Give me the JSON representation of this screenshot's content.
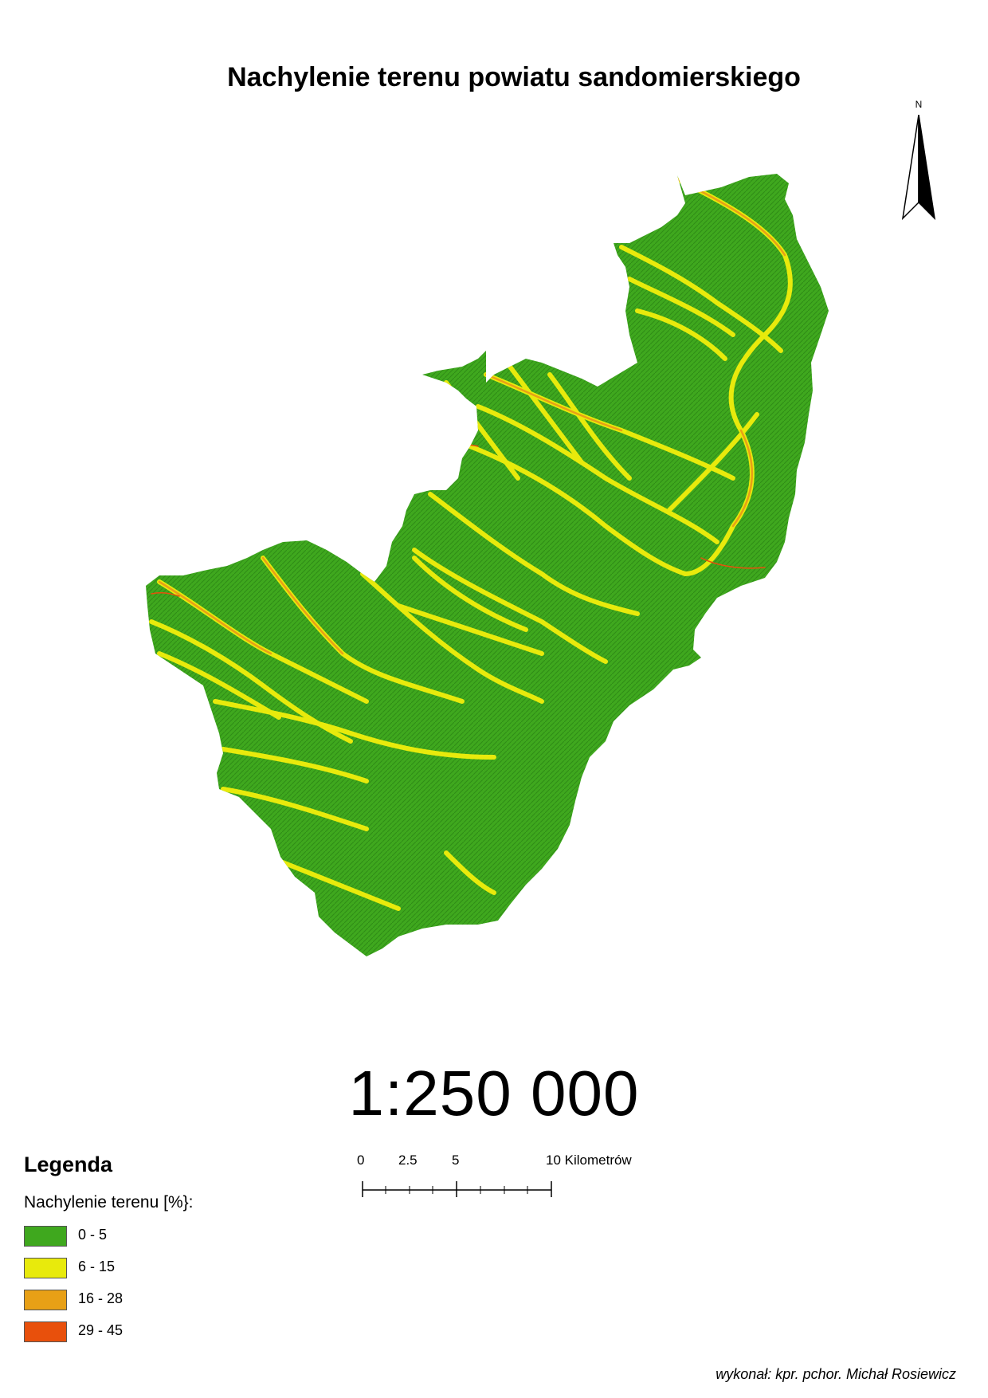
{
  "title": "Nachylenie terenu powiatu sandomierskiego",
  "north_arrow": {
    "label": "N"
  },
  "scale_ratio": "1:250 000",
  "scale_bar": {
    "labels": [
      "0",
      "2.5",
      "5",
      "10 Kilometrów"
    ]
  },
  "legend": {
    "title": "Legenda",
    "subtitle": "Nachylenie terenu [%}:",
    "items": [
      {
        "label": "0 - 5",
        "color": "#3fa81e"
      },
      {
        "label": "6 - 15",
        "color": "#e8ea0c"
      },
      {
        "label": "16 - 28",
        "color": "#e8a016"
      },
      {
        "label": "29 - 45",
        "color": "#e8500c"
      }
    ]
  },
  "author": "wykonał: kpr. pchor. Michał Rosiewicz"
}
